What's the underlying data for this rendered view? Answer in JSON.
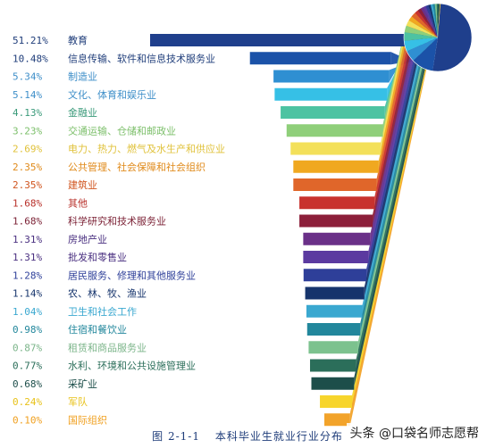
{
  "chart_data": {
    "type": "bar",
    "layout_style": "horizontal bars fanning into a pie chart on the right",
    "categories": [
      "教育",
      "信息传输、软件和信息技术服务业",
      "制造业",
      "文化、体育和娱乐业",
      "金融业",
      "交通运输、仓储和邮政业",
      "电力、热力、燃气及水生产和供应业",
      "公共管理、社会保障和社会组织",
      "建筑业",
      "其他",
      "科学研究和技术服务业",
      "房地产业",
      "批发和零售业",
      "居民服务、修理和其他服务业",
      "农、林、牧、渔业",
      "卫生和社会工作",
      "住宿和餐饮业",
      "租赁和商品服务业",
      "水利、环境和公共设施管理业",
      "采矿业",
      "军队",
      "国际组织"
    ],
    "labels": [
      "51.21%",
      "10.48%",
      "5.34%",
      "5.14%",
      "4.13%",
      "3.23%",
      "2.69%",
      "2.35%",
      "2.35%",
      "1.68%",
      "1.68%",
      "1.31%",
      "1.31%",
      "1.28%",
      "1.14%",
      "1.04%",
      "0.98%",
      "0.87%",
      "0.77%",
      "0.68%",
      "0.24%",
      "0.10%"
    ],
    "values": [
      51.21,
      10.48,
      5.34,
      5.14,
      4.13,
      3.23,
      2.69,
      2.35,
      2.35,
      1.68,
      1.68,
      1.31,
      1.31,
      1.28,
      1.14,
      1.04,
      0.98,
      0.87,
      0.77,
      0.68,
      0.24,
      0.1
    ],
    "colors": [
      "#1f3f8c",
      "#1b52a8",
      "#2f8fd2",
      "#36c0e6",
      "#4dc3a2",
      "#8fcf7a",
      "#f3e05a",
      "#f0a820",
      "#e0662a",
      "#c8322e",
      "#8c1f3a",
      "#6a3088",
      "#5b3aa0",
      "#2e3f99",
      "#16346c",
      "#3aa8d0",
      "#22879c",
      "#7cc28e",
      "#2b6e5a",
      "#1d4e4a",
      "#f7d52c",
      "#f2a32a"
    ],
    "label_colors": [
      "#1f3d7a",
      "#1f3d7a",
      "#3f8fc9",
      "#3f8fc9",
      "#3a9a7a",
      "#7cbf6a",
      "#e0c23a",
      "#e08a1a",
      "#d0541e",
      "#b8302a",
      "#7a1f33",
      "#4a3080",
      "#4a3080",
      "#2e3f99",
      "#16346c",
      "#3aa8d0",
      "#22879c",
      "#7cb58a",
      "#2b6e5a",
      "#1d4e4a",
      "#e8c21a",
      "#f0a020"
    ]
  },
  "figure": {
    "number": "图 2-1-1",
    "title": "本科毕业生就业行业分布"
  },
  "watermark": "头条 @口袋名师志愿帮"
}
